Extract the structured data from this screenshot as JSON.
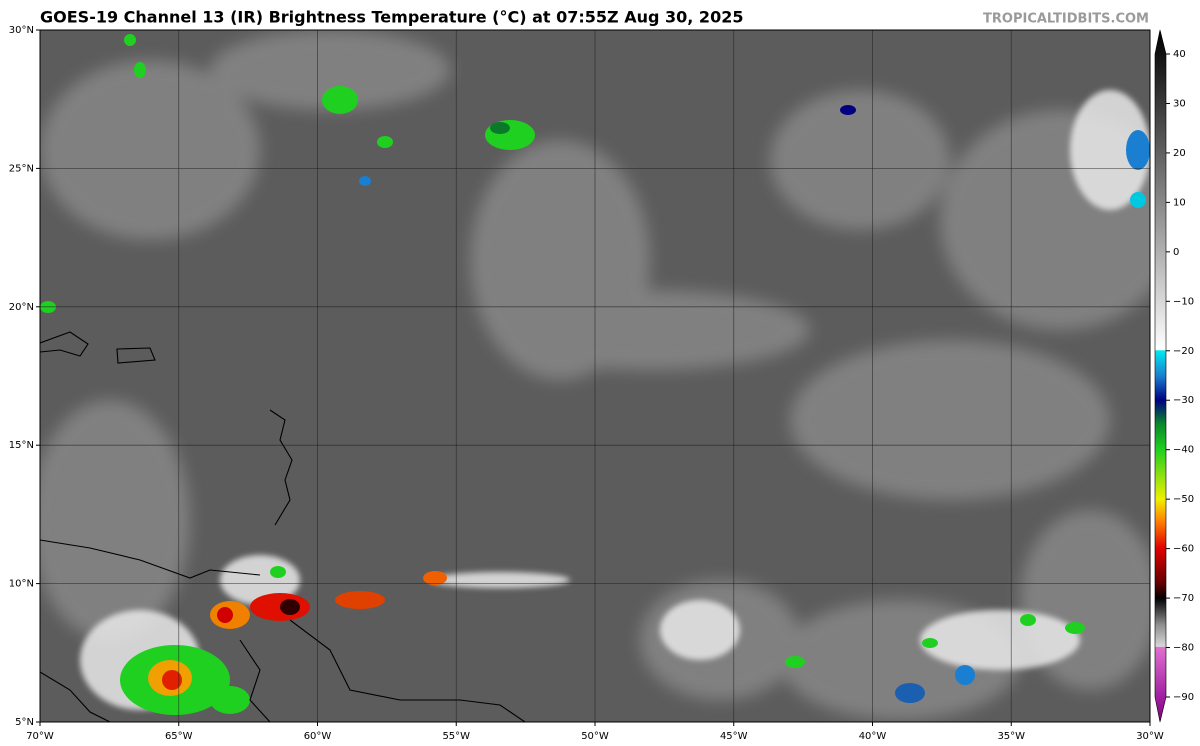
{
  "header": {
    "title": "GOES-19 Channel 13 (IR) Brightness Temperature (°C) at 07:55Z Aug 30, 2025",
    "source": "TROPICALTIDBITS.COM"
  },
  "map": {
    "latitude_labels": [
      "30°N",
      "25°N",
      "20°N",
      "15°N",
      "10°N",
      "5°N"
    ],
    "longitude_labels": [
      "70°W",
      "65°W",
      "60°W",
      "55°W",
      "50°W",
      "45°W",
      "40°W",
      "35°W",
      "30°W"
    ]
  },
  "colorbar": {
    "ticks": [
      40,
      30,
      20,
      10,
      0,
      {
        "value": -10,
        "label": "−10"
      },
      {
        "value": -20,
        "label": "−20"
      },
      {
        "value": -30,
        "label": "−30"
      },
      {
        "value": -40,
        "label": "−40"
      },
      {
        "value": -50,
        "label": "−50"
      },
      {
        "value": -60,
        "label": "−60"
      },
      {
        "value": -70,
        "label": "−70"
      },
      {
        "value": -80,
        "label": "−80"
      },
      {
        "value": -90,
        "label": "−90"
      }
    ]
  }
}
